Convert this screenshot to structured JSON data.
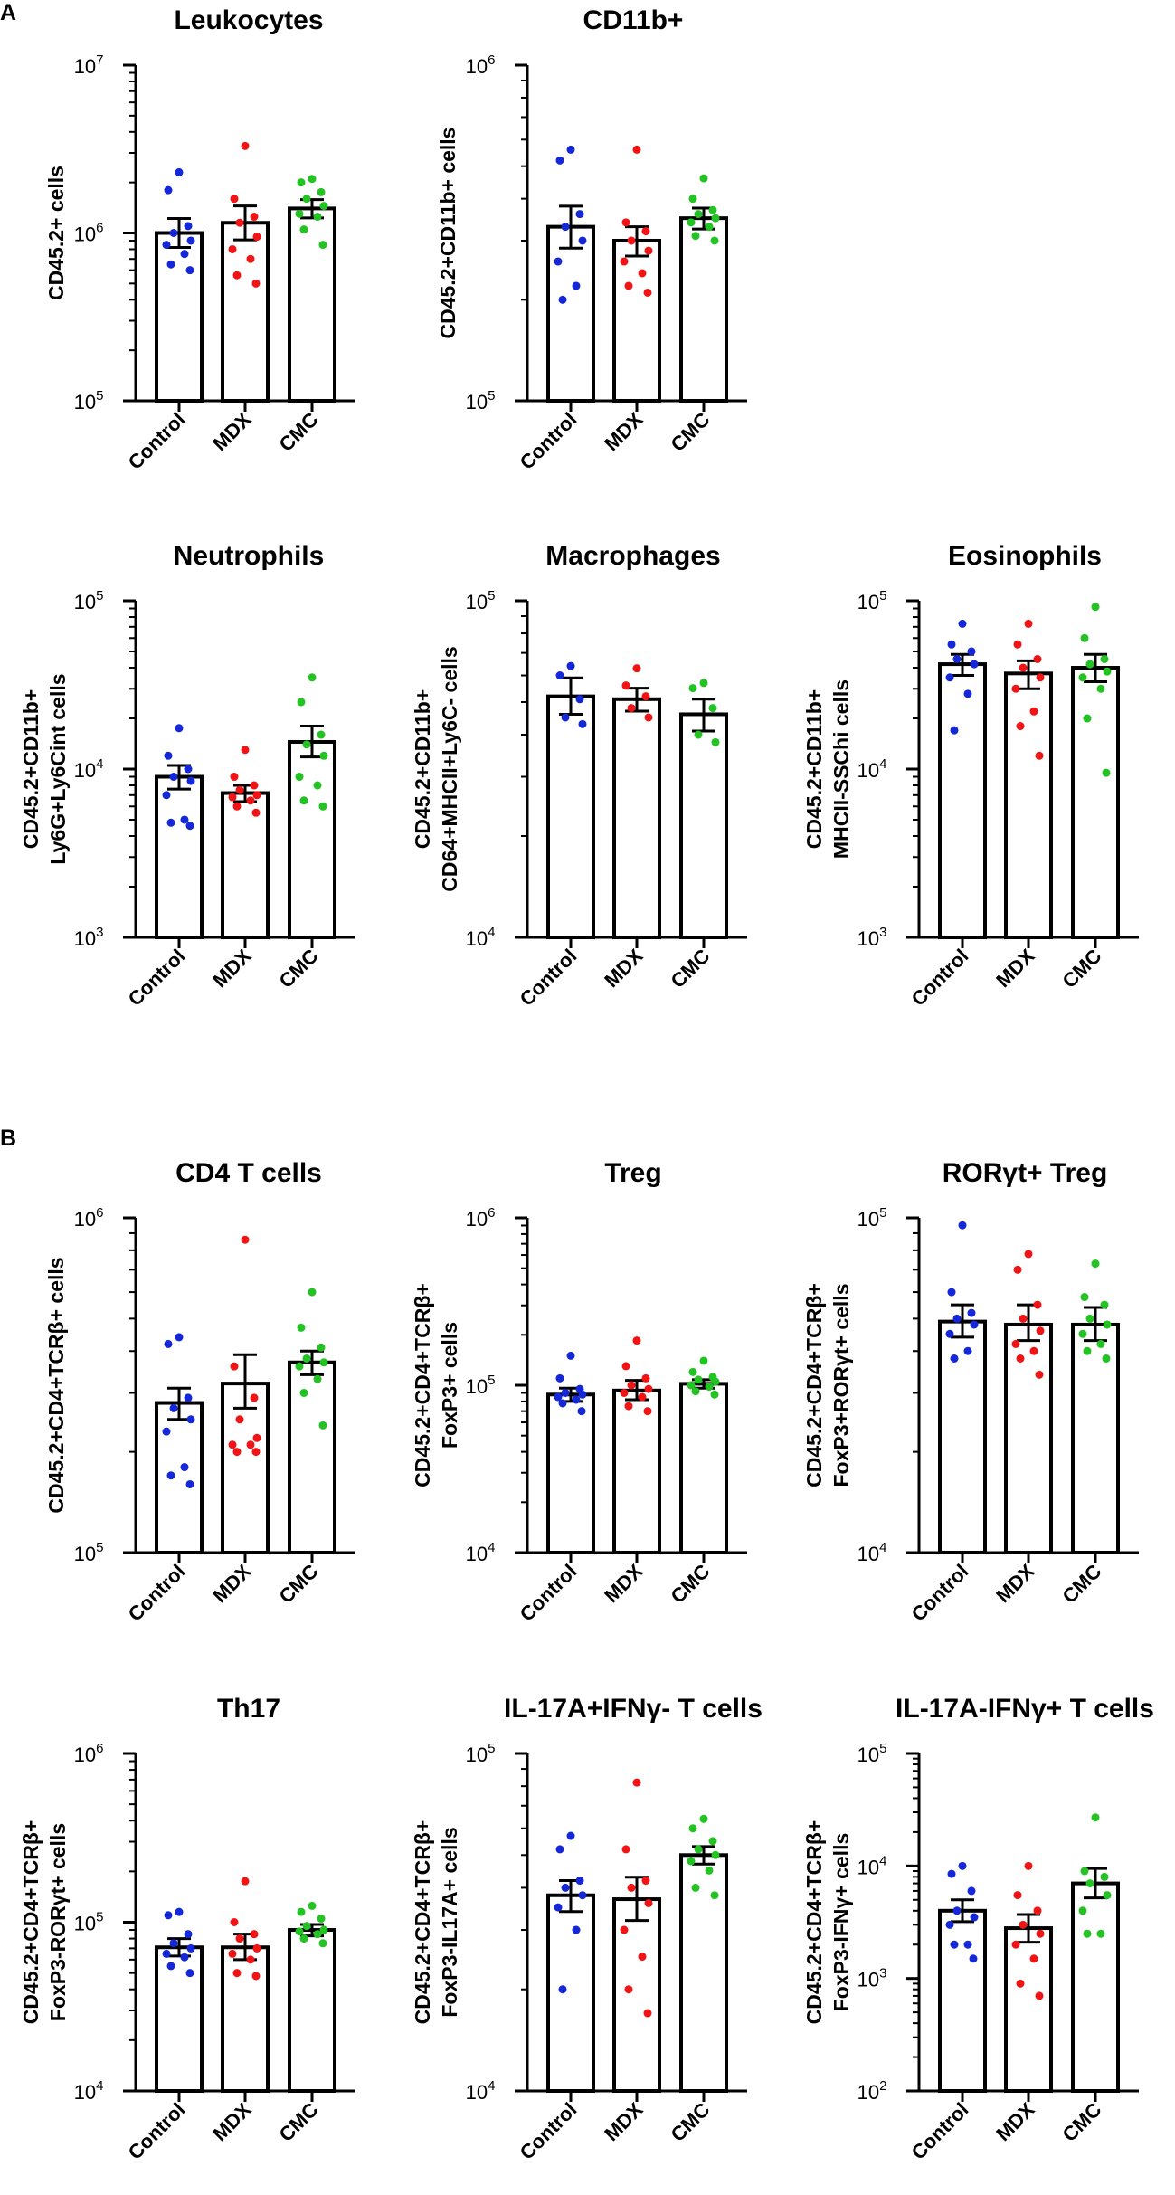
{
  "figure": {
    "panel_labels": [
      "A",
      "B"
    ],
    "colors": {
      "control": "#1428d8",
      "mdx": "#f01414",
      "cmc": "#22c322",
      "bar": "#000000"
    },
    "groups": [
      "Control",
      "MDX",
      "CMC"
    ]
  },
  "chart_data": [
    {
      "id": "leukocytes",
      "type": "bar",
      "scale": "log",
      "title": "Leukocytes",
      "ylabel": [
        "CD45.2+ cells"
      ],
      "ylim_exp": [
        5,
        7
      ],
      "categories": [
        "Control",
        "MDX",
        "CMC"
      ],
      "means": [
        1000000,
        1150000,
        1400000
      ],
      "sem_upper": [
        1220000,
        1450000,
        1580000
      ],
      "sem_lower": [
        820000,
        910000,
        1230000
      ],
      "points": [
        [
          2300000,
          1800000,
          1100000,
          1000000,
          900000,
          850000,
          750000,
          650000,
          600000
        ],
        [
          3300000,
          1600000,
          1250000,
          1150000,
          950000,
          800000,
          700000,
          560000,
          500000
        ],
        [
          2100000,
          2000000,
          1750000,
          1600000,
          1450000,
          1300000,
          1250000,
          1050000,
          850000
        ]
      ]
    },
    {
      "id": "cd11b",
      "type": "bar",
      "scale": "log",
      "title": "CD11b+",
      "ylabel": [
        "CD45.2+CD11b+ cells"
      ],
      "ylim_exp": [
        5,
        6
      ],
      "categories": [
        "Control",
        "MDX",
        "CMC"
      ],
      "means": [
        330000,
        300000,
        350000
      ],
      "sem_upper": [
        380000,
        330000,
        375000
      ],
      "sem_lower": [
        285000,
        270000,
        325000
      ],
      "points": [
        [
          560000,
          520000,
          360000,
          330000,
          300000,
          260000,
          220000,
          200000
        ],
        [
          560000,
          340000,
          320000,
          300000,
          280000,
          260000,
          240000,
          220000,
          210000
        ],
        [
          460000,
          400000,
          370000,
          360000,
          350000,
          340000,
          330000,
          310000,
          300000
        ]
      ]
    },
    {
      "id": "neutrophils",
      "type": "bar",
      "scale": "log",
      "title": "Neutrophils",
      "ylabel": [
        "CD45.2+CD11b+",
        "Ly6G+Ly6Cint cells"
      ],
      "ylim_exp": [
        3,
        5
      ],
      "categories": [
        "Control",
        "MDX",
        "CMC"
      ],
      "means": [
        9000,
        7200,
        14500
      ],
      "sem_upper": [
        10500,
        8000,
        18000
      ],
      "sem_lower": [
        7600,
        6400,
        11800
      ],
      "points": [
        [
          17500,
          12000,
          10000,
          9000,
          8500,
          7000,
          5000,
          4800,
          4600
        ],
        [
          13000,
          9000,
          8000,
          7500,
          7000,
          6800,
          6500,
          6000,
          5500
        ],
        [
          35000,
          25000,
          16000,
          14000,
          12000,
          9000,
          8000,
          6500,
          6000
        ]
      ]
    },
    {
      "id": "macrophages",
      "type": "bar",
      "scale": "log",
      "title": "Macrophages",
      "ylabel": [
        "CD45.2+CD11b+",
        "CD64+MHCII+Ly6C- cells"
      ],
      "ylim_exp": [
        4,
        5
      ],
      "categories": [
        "Control",
        "MDX",
        "CMC"
      ],
      "means": [
        52000,
        51000,
        46000
      ],
      "sem_upper": [
        59000,
        55000,
        51000
      ],
      "sem_lower": [
        46000,
        47000,
        41000
      ],
      "points": [
        [
          64000,
          60000,
          51000,
          45000,
          43000
        ],
        [
          63000,
          56000,
          52000,
          48000,
          45000
        ],
        [
          57000,
          55000,
          48000,
          40000,
          38000
        ]
      ]
    },
    {
      "id": "eosinophils",
      "type": "bar",
      "scale": "log",
      "title": "Eosinophils",
      "ylabel": [
        "CD45.2+CD11b+",
        "MHCII-SSChi cells"
      ],
      "ylim_exp": [
        3,
        5
      ],
      "categories": [
        "Control",
        "MDX",
        "CMC"
      ],
      "means": [
        42000,
        37000,
        40000
      ],
      "sem_upper": [
        48000,
        44000,
        48000
      ],
      "sem_lower": [
        36000,
        30000,
        33000
      ],
      "points": [
        [
          73000,
          55000,
          50000,
          45000,
          42000,
          35000,
          28000,
          17000
        ],
        [
          73000,
          55000,
          45000,
          40000,
          35000,
          30000,
          22000,
          18000,
          12000
        ],
        [
          92000,
          60000,
          45000,
          42000,
          38000,
          35000,
          30000,
          20000,
          9500
        ]
      ]
    },
    {
      "id": "cd4",
      "type": "bar",
      "scale": "log",
      "title": "CD4 T cells",
      "ylabel": [
        "CD45.2+CD4+TCRβ+ cells"
      ],
      "ylim_exp": [
        5,
        6
      ],
      "categories": [
        "Control",
        "MDX",
        "CMC"
      ],
      "means": [
        280000,
        320000,
        370000
      ],
      "sem_upper": [
        310000,
        390000,
        400000
      ],
      "sem_lower": [
        250000,
        270000,
        340000
      ],
      "points": [
        [
          440000,
          420000,
          290000,
          270000,
          250000,
          230000,
          180000,
          170000,
          160000
        ],
        [
          860000,
          360000,
          290000,
          250000,
          220000,
          210000,
          210000,
          200000,
          200000
        ],
        [
          600000,
          470000,
          410000,
          380000,
          370000,
          360000,
          330000,
          300000,
          240000
        ]
      ]
    },
    {
      "id": "treg",
      "type": "bar",
      "scale": "log",
      "title": "Treg",
      "ylabel": [
        "CD45.2+CD4+TCRβ+",
        "FoxP3+ cells"
      ],
      "ylim_exp": [
        4,
        6
      ],
      "categories": [
        "Control",
        "MDX",
        "CMC"
      ],
      "means": [
        88000,
        93000,
        102000
      ],
      "sem_upper": [
        96000,
        107000,
        108000
      ],
      "sem_lower": [
        80000,
        82000,
        96000
      ],
      "points": [
        [
          150000,
          110000,
          95000,
          90000,
          88000,
          85000,
          82000,
          78000,
          70000
        ],
        [
          185000,
          130000,
          110000,
          100000,
          95000,
          90000,
          85000,
          75000,
          70000
        ],
        [
          140000,
          120000,
          112000,
          108000,
          105000,
          100000,
          98000,
          92000,
          88000
        ]
      ]
    },
    {
      "id": "roryt_treg",
      "type": "bar",
      "scale": "log",
      "title": "RORγt+ Treg",
      "ylabel": [
        "CD45.2+CD4+TCRβ+",
        "FoxP3+RORγt+ cells"
      ],
      "ylim_exp": [
        4,
        5
      ],
      "categories": [
        "Control",
        "MDX",
        "CMC"
      ],
      "means": [
        49000,
        48000,
        48000
      ],
      "sem_upper": [
        55000,
        55000,
        54000
      ],
      "sem_lower": [
        44000,
        43000,
        43000
      ],
      "points": [
        [
          95000,
          60000,
          52000,
          50000,
          48000,
          45000,
          40000,
          38000
        ],
        [
          78000,
          70000,
          55000,
          50000,
          46000,
          42000,
          40000,
          38000,
          34000
        ],
        [
          73000,
          58000,
          55000,
          50000,
          48000,
          45000,
          42000,
          40000,
          38000
        ]
      ]
    },
    {
      "id": "th17",
      "type": "bar",
      "scale": "log",
      "title": "Th17",
      "ylabel": [
        "CD45.2+CD4+TCRβ+",
        "FoxP3-RORγt+ cells"
      ],
      "ylim_exp": [
        4,
        6
      ],
      "categories": [
        "Control",
        "MDX",
        "CMC"
      ],
      "means": [
        71000,
        71000,
        90000
      ],
      "sem_upper": [
        80000,
        85000,
        97000
      ],
      "sem_lower": [
        63000,
        60000,
        83000
      ],
      "points": [
        [
          115000,
          110000,
          85000,
          75000,
          70000,
          65000,
          62000,
          55000,
          50000
        ],
        [
          175000,
          100000,
          85000,
          80000,
          70000,
          65000,
          60000,
          50000,
          48000
        ],
        [
          125000,
          115000,
          105000,
          95000,
          90000,
          88000,
          85000,
          80000,
          75000
        ]
      ]
    },
    {
      "id": "il17a",
      "type": "bar",
      "scale": "log",
      "title": "IL-17A+IFNγ- T cells",
      "ylabel": [
        "CD45.2+CD4+TCRβ+",
        "FoxP3-IL17A+ cells"
      ],
      "ylim_exp": [
        4,
        5
      ],
      "categories": [
        "Control",
        "MDX",
        "CMC"
      ],
      "means": [
        38000,
        37000,
        50000
      ],
      "sem_upper": [
        42000,
        43000,
        53000
      ],
      "sem_lower": [
        34000,
        32000,
        47000
      ],
      "points": [
        [
          57000,
          52000,
          42000,
          40000,
          38000,
          35000,
          30000,
          20000
        ],
        [
          82000,
          52000,
          42000,
          40000,
          36000,
          30000,
          25000,
          20000,
          17000
        ],
        [
          64000,
          60000,
          55000,
          52000,
          50000,
          48000,
          45000,
          40000,
          38000
        ]
      ]
    },
    {
      "id": "ifng",
      "type": "bar",
      "scale": "log",
      "title": "IL-17A-IFNγ+ T cells",
      "ylabel": [
        "CD45.2+CD4+TCRβ+",
        "FoxP3-IFNγ+ cells"
      ],
      "ylim_exp": [
        2,
        5
      ],
      "categories": [
        "Control",
        "MDX",
        "CMC"
      ],
      "means": [
        4000,
        2800,
        7000
      ],
      "sem_upper": [
        5000,
        3700,
        9500
      ],
      "sem_lower": [
        3200,
        2100,
        5200
      ],
      "points": [
        [
          10000,
          8500,
          6000,
          4000,
          3500,
          3000,
          2000,
          2000,
          1500
        ],
        [
          10000,
          5500,
          4000,
          3000,
          2500,
          2000,
          1500,
          900,
          700
        ],
        [
          27000,
          9000,
          8000,
          7000,
          5500,
          4000,
          2500,
          2500
        ]
      ]
    }
  ]
}
